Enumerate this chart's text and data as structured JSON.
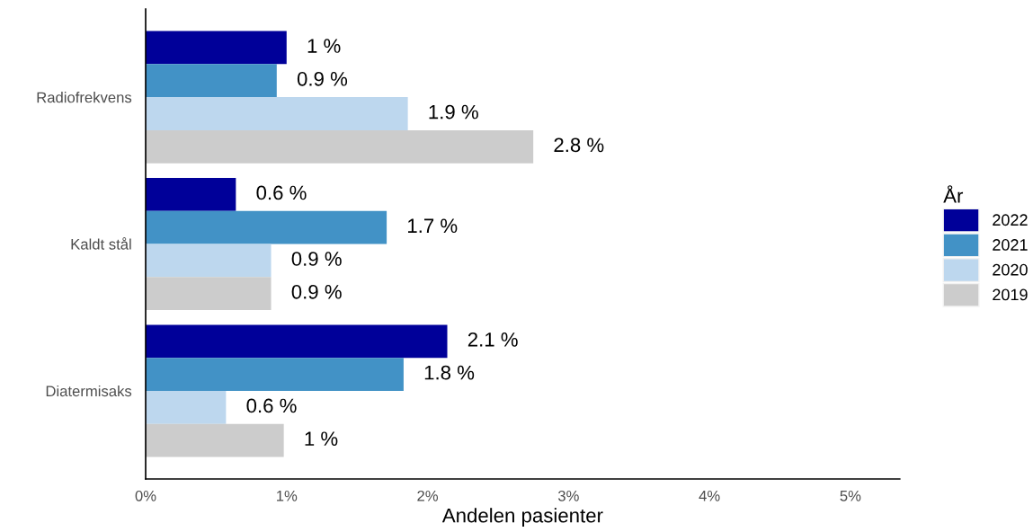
{
  "chart_data": {
    "type": "bar",
    "orientation": "horizontal",
    "categories": [
      "Radiofrekvens",
      "Kaldt stål",
      "Diatermisaks"
    ],
    "series": [
      {
        "name": "2022",
        "color": "#000099",
        "values": [
          1.0,
          0.64,
          2.14
        ],
        "value_labels": [
          "1 %",
          "0.6 %",
          "2.1 %"
        ]
      },
      {
        "name": "2021",
        "color": "#4292c6",
        "values": [
          0.93,
          1.71,
          1.83
        ],
        "value_labels": [
          "0.9 %",
          "1.7 %",
          "1.8 %"
        ]
      },
      {
        "name": "2020",
        "color": "#bdd7ee",
        "values": [
          1.86,
          0.89,
          0.57
        ],
        "value_labels": [
          "1.9 %",
          "0.9 %",
          "0.6 %"
        ]
      },
      {
        "name": "2019",
        "color": "#cccccc",
        "values": [
          2.75,
          0.89,
          0.98
        ],
        "value_labels": [
          "2.8 %",
          "0.9 %",
          "1 %"
        ]
      }
    ],
    "xlabel": "Andelen pasienter",
    "legend_title": "År",
    "legend": "right",
    "xlim": [
      0,
      5.35
    ],
    "xticks": [
      {
        "value": 0,
        "label": "0%"
      },
      {
        "value": 1,
        "label": "1%"
      },
      {
        "value": 2,
        "label": "2%"
      },
      {
        "value": 3,
        "label": "3%"
      },
      {
        "value": 4,
        "label": "4%"
      },
      {
        "value": 5,
        "label": "5%"
      }
    ]
  }
}
